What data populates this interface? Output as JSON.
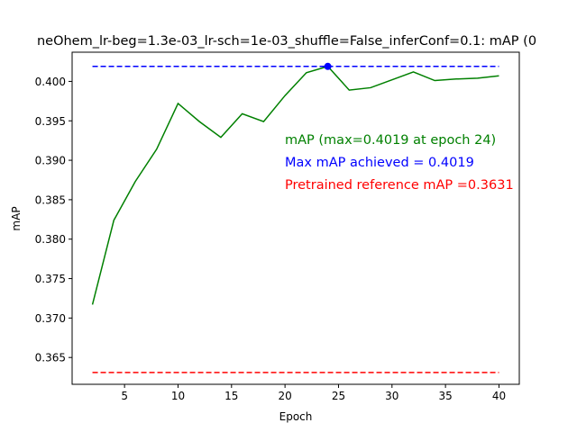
{
  "chart_data": {
    "type": "line",
    "title": "neOhem_lr-beg=1.3e-03_lr-sch=1e-03_shuffle=False_inferConf=0.1:  mAP (0",
    "xlabel": "Epoch",
    "ylabel": "mAP",
    "xlim": [
      0.1,
      41.9
    ],
    "ylim": [
      0.3616,
      0.4037
    ],
    "xticks": [
      5,
      10,
      15,
      20,
      25,
      30,
      35,
      40
    ],
    "xtick_labels": [
      "5",
      "10",
      "15",
      "20",
      "25",
      "30",
      "35",
      "40"
    ],
    "yticks": [
      0.365,
      0.37,
      0.375,
      0.38,
      0.385,
      0.39,
      0.395,
      0.4
    ],
    "ytick_labels": [
      "0.365",
      "0.370",
      "0.375",
      "0.380",
      "0.385",
      "0.390",
      "0.395",
      "0.400"
    ],
    "grid": false,
    "series": [
      {
        "color": "#008000",
        "style": "solid",
        "x": [
          2,
          4,
          6,
          8,
          10,
          12,
          14,
          16,
          18,
          20,
          22,
          24,
          26,
          28,
          30,
          32,
          34,
          36,
          38,
          40
        ],
        "values": [
          0.3717,
          0.3824,
          0.3873,
          0.3914,
          0.3972,
          0.3949,
          0.3929,
          0.3959,
          0.3949,
          0.3982,
          0.4011,
          0.4019,
          0.3989,
          0.3992,
          0.4002,
          0.4012,
          0.4001,
          0.4003,
          0.4004,
          0.4007
        ]
      },
      {
        "color": "#0000ff",
        "style": "dashed",
        "x": [
          2,
          40
        ],
        "values": [
          0.4019,
          0.4019
        ]
      },
      {
        "color": "#ff0000",
        "style": "dashed",
        "x": [
          2,
          40
        ],
        "values": [
          0.3631,
          0.3631
        ]
      }
    ],
    "marker": {
      "x": 24,
      "y": 0.4019,
      "color": "#0000ff"
    },
    "annotations": [
      {
        "text": "mAP (max=0.4019 at epoch 24)",
        "color": "#008000"
      },
      {
        "text": "Max mAP achieved = 0.4019",
        "color": "#0000ff"
      },
      {
        "text": "Pretrained reference mAP =0.3631",
        "color": "#ff0000"
      }
    ]
  }
}
